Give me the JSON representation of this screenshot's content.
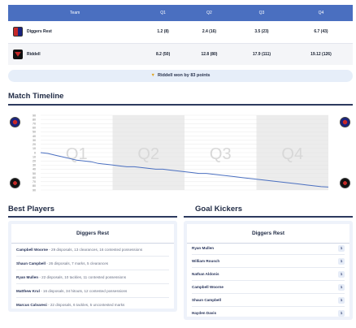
{
  "score_table": {
    "headers": [
      "Team",
      "Q1",
      "Q2",
      "Q3",
      "Q4"
    ],
    "rows": [
      {
        "team": "Diggers Rest",
        "q1": "1.2 (8)",
        "q2": "2.4 (16)",
        "q3": "3.5 (23)",
        "q4": "6.7 (43)"
      },
      {
        "team": "Riddell",
        "q1": "8.2 (50)",
        "q2": "12.8 (80)",
        "q3": "17.9 (111)",
        "q4": "19.12 (126)"
      }
    ]
  },
  "result": {
    "icon": "trophy-icon",
    "text": "Riddell won by 83 points"
  },
  "timeline": {
    "title": "Match Timeline",
    "quarters": [
      "Q1",
      "Q2",
      "Q3",
      "Q4"
    ],
    "y_ticks": [
      "90",
      "80",
      "70",
      "60",
      "50",
      "40",
      "30",
      "20",
      "10",
      "0",
      "10",
      "20",
      "30",
      "40",
      "50",
      "60",
      "70",
      "80",
      "90"
    ],
    "chart_data": {
      "type": "line",
      "title": "",
      "ylim": [
        -90,
        90
      ],
      "y": [
        0,
        -2,
        -6,
        -10,
        -14,
        -18,
        -20,
        -22,
        -26,
        -28,
        -30,
        -32,
        -34,
        -34,
        -36,
        -38,
        -40,
        -40,
        -42,
        -44,
        -46,
        -48,
        -50,
        -50,
        -52,
        -54,
        -56,
        -58,
        -60,
        -62,
        -64,
        -66,
        -68,
        -70,
        -72,
        -74,
        -76,
        -78,
        -80,
        -82,
        -83
      ],
      "ygrid": true
    }
  },
  "best_players": {
    "title": "Best Players",
    "team": "Diggers Rest",
    "players": [
      {
        "name": "Campbell Woorne",
        "stats": " - 29 disposals, 13 clearances, 16 contested possessions"
      },
      {
        "name": "Shaun Campbell",
        "stats": " - 26 disposals, 7 marks, 5 clearances"
      },
      {
        "name": "Ryan Mullen",
        "stats": " - 22 disposals, 10 tackles, 11 contested possessions"
      },
      {
        "name": "Matthew Krul",
        "stats": " - 16 disposals, 34 hitouts, 12 contested possessions"
      },
      {
        "name": "Marcus Calvaresi",
        "stats": " - 22 disposals, 6 tackles, 5 uncontested marks"
      }
    ]
  },
  "goal_kickers": {
    "title": "Goal Kickers",
    "team": "Diggers Rest",
    "kickers": [
      {
        "name": "Ryan Mullen",
        "goals": "1"
      },
      {
        "name": "William Rousch",
        "goals": "1"
      },
      {
        "name": "Nathan Aldonis",
        "goals": "1"
      },
      {
        "name": "Campbell Woorne",
        "goals": "1"
      },
      {
        "name": "Shaun Campbell",
        "goals": "1"
      },
      {
        "name": "Hayden Davis",
        "goals": "1"
      }
    ]
  },
  "colors": {
    "accent": "#4a6fc0",
    "line": "#4a6fc0",
    "quarter_shade": "#ececec"
  }
}
